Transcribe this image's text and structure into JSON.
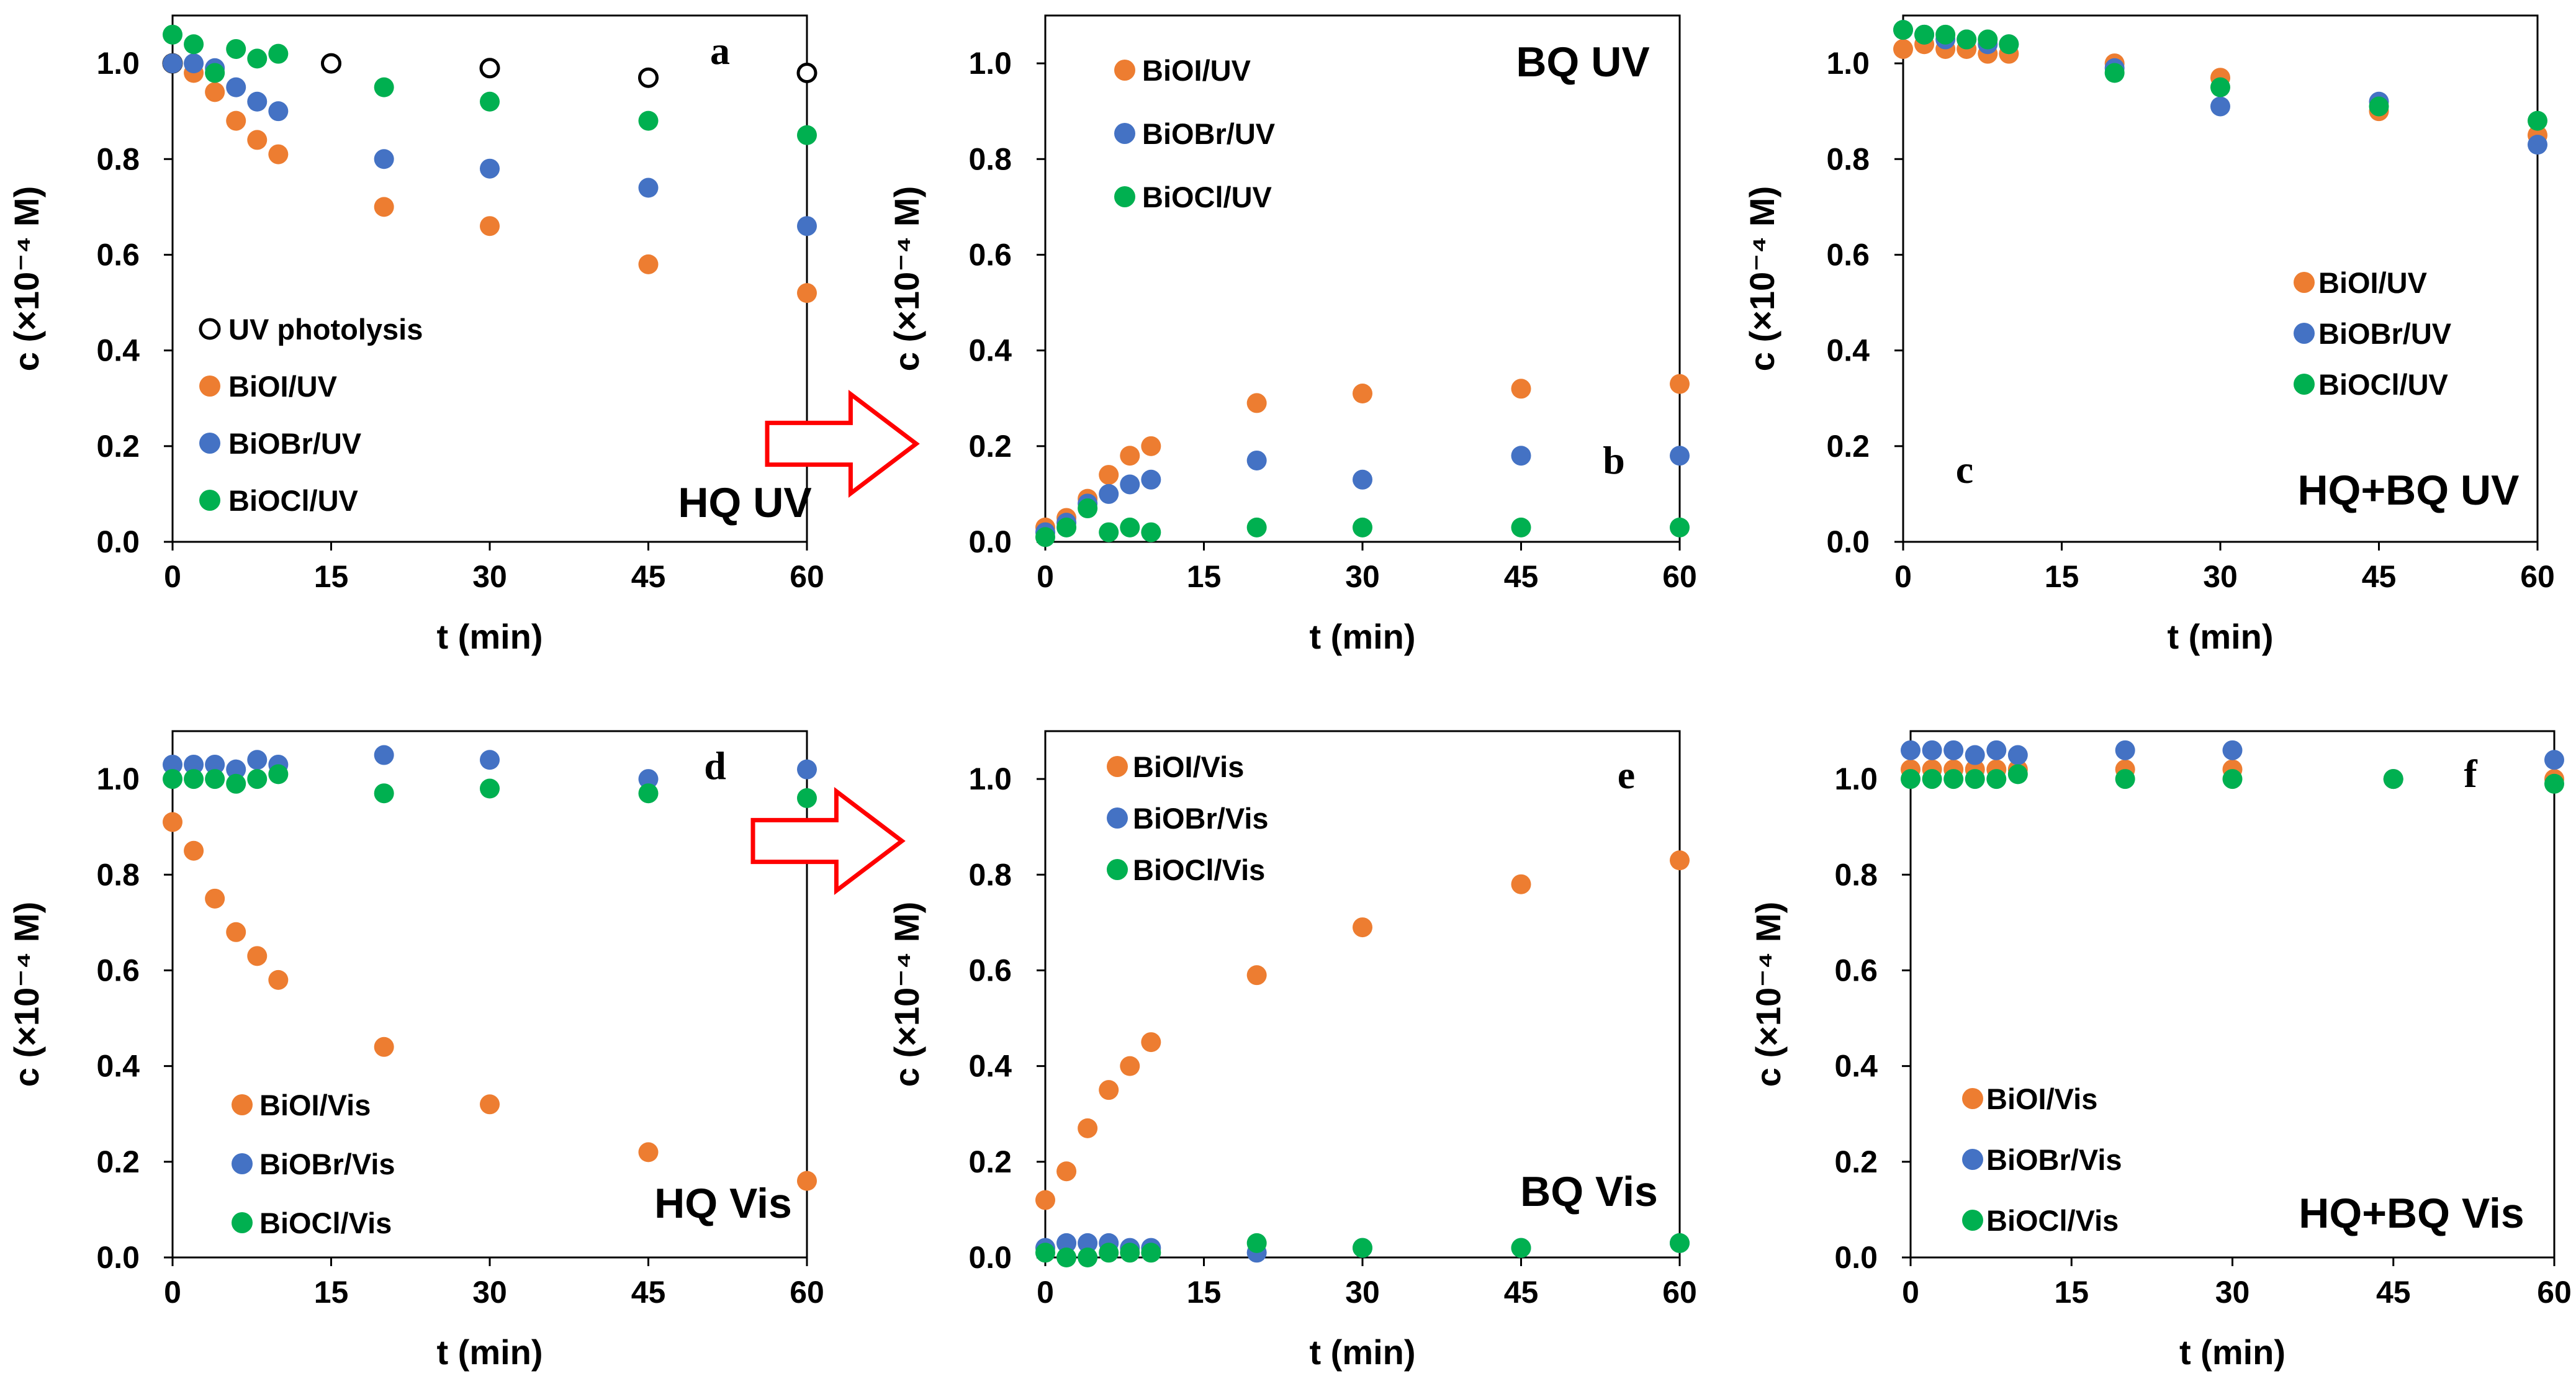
{
  "chart_data": [
    {
      "type": "scatter",
      "panel_letter": "a",
      "title": "HQ UV",
      "xlabel": "t (min)",
      "ylabel": "c (×10⁻⁴ M)",
      "xlim": [
        0,
        60
      ],
      "ylim": [
        0,
        1.1
      ],
      "xticks": [
        0,
        15,
        30,
        45,
        60
      ],
      "xtick_labels": [
        "0",
        "15",
        "30",
        "45",
        "60"
      ],
      "yticks": [
        0,
        0.2,
        0.4,
        0.6,
        0.8,
        1.0
      ],
      "ytick_labels": [
        "0.0",
        "0.2",
        "0.4",
        "0.6",
        "0.8",
        "1.0"
      ],
      "grid": false,
      "legend_position": "bottom-left",
      "series": [
        {
          "name": "UV photolysis",
          "color": "#000000",
          "marker": "open-circle",
          "x": [
            0,
            15,
            30,
            45,
            60
          ],
          "y": [
            1.0,
            1.0,
            0.99,
            0.97,
            0.98
          ]
        },
        {
          "name": "BiOI/UV",
          "color": "#ED7D31",
          "marker": "filled-circle",
          "x": [
            0,
            2,
            4,
            6,
            8,
            10,
            20,
            30,
            45,
            60
          ],
          "y": [
            1.0,
            0.98,
            0.94,
            0.88,
            0.84,
            0.81,
            0.7,
            0.66,
            0.58,
            0.52
          ]
        },
        {
          "name": "BiOBr/UV",
          "color": "#4472C4",
          "marker": "filled-circle",
          "x": [
            0,
            2,
            4,
            6,
            8,
            10,
            20,
            30,
            45,
            60
          ],
          "y": [
            1.0,
            1.0,
            0.99,
            0.95,
            0.92,
            0.9,
            0.8,
            0.78,
            0.74,
            0.66
          ]
        },
        {
          "name": "BiOCl/UV",
          "color": "#00B050",
          "marker": "filled-circle",
          "x": [
            0,
            2,
            4,
            6,
            8,
            10,
            20,
            30,
            45,
            60
          ],
          "y": [
            1.06,
            1.04,
            0.98,
            1.03,
            1.01,
            1.02,
            0.95,
            0.92,
            0.88,
            0.85
          ]
        }
      ]
    },
    {
      "type": "scatter",
      "panel_letter": "b",
      "title": "BQ UV",
      "xlabel": "t (min)",
      "ylabel": "c (×10⁻⁴ M)",
      "xlim": [
        0,
        60
      ],
      "ylim": [
        0,
        1.1
      ],
      "xticks": [
        0,
        15,
        30,
        45,
        60
      ],
      "xtick_labels": [
        "0",
        "15",
        "30",
        "45",
        "60"
      ],
      "yticks": [
        0,
        0.2,
        0.4,
        0.6,
        0.8,
        1.0
      ],
      "ytick_labels": [
        "0.0",
        "0.2",
        "0.4",
        "0.6",
        "0.8",
        "1.0"
      ],
      "grid": false,
      "legend_position": "top-left",
      "series": [
        {
          "name": "BiOI/UV",
          "color": "#ED7D31",
          "marker": "filled-circle",
          "x": [
            0,
            2,
            4,
            6,
            8,
            10,
            20,
            30,
            45,
            60
          ],
          "y": [
            0.03,
            0.05,
            0.09,
            0.14,
            0.18,
            0.2,
            0.29,
            0.31,
            0.32,
            0.33
          ]
        },
        {
          "name": "BiOBr/UV",
          "color": "#4472C4",
          "marker": "filled-circle",
          "x": [
            0,
            2,
            4,
            6,
            8,
            10,
            20,
            30,
            45,
            60
          ],
          "y": [
            0.02,
            0.04,
            0.08,
            0.1,
            0.12,
            0.13,
            0.17,
            0.13,
            0.18,
            0.18
          ]
        },
        {
          "name": "BiOCl/UV",
          "color": "#00B050",
          "marker": "filled-circle",
          "x": [
            0,
            2,
            4,
            6,
            8,
            10,
            20,
            30,
            45,
            60
          ],
          "y": [
            0.01,
            0.03,
            0.07,
            0.02,
            0.03,
            0.02,
            0.03,
            0.03,
            0.03,
            0.03
          ]
        }
      ]
    },
    {
      "type": "scatter",
      "panel_letter": "c",
      "title": "HQ+BQ UV",
      "xlabel": "t (min)",
      "ylabel": "c (×10⁻⁴ M)",
      "xlim": [
        0,
        60
      ],
      "ylim": [
        0,
        1.1
      ],
      "xticks": [
        0,
        15,
        30,
        45,
        60
      ],
      "xtick_labels": [
        "0",
        "15",
        "30",
        "45",
        "60"
      ],
      "yticks": [
        0,
        0.2,
        0.4,
        0.6,
        0.8,
        1.0
      ],
      "ytick_labels": [
        "0.0",
        "0.2",
        "0.4",
        "0.6",
        "0.8",
        "1.0"
      ],
      "grid": false,
      "legend_position": "middle-right",
      "series": [
        {
          "name": "BiOI/UV",
          "color": "#ED7D31",
          "marker": "filled-circle",
          "x": [
            0,
            2,
            4,
            6,
            8,
            10,
            20,
            30,
            45,
            60
          ],
          "y": [
            1.03,
            1.04,
            1.03,
            1.03,
            1.02,
            1.02,
            1.0,
            0.97,
            0.9,
            0.85
          ]
        },
        {
          "name": "BiOBr/UV",
          "color": "#4472C4",
          "marker": "filled-circle",
          "x": [
            0,
            2,
            4,
            6,
            8,
            10,
            20,
            30,
            45,
            60
          ],
          "y": [
            1.07,
            1.06,
            1.05,
            1.05,
            1.04,
            1.04,
            0.99,
            0.91,
            0.92,
            0.83
          ]
        },
        {
          "name": "BiOCl/UV",
          "color": "#00B050",
          "marker": "filled-circle",
          "x": [
            0,
            2,
            4,
            6,
            8,
            10,
            20,
            30,
            45,
            60
          ],
          "y": [
            1.07,
            1.06,
            1.06,
            1.05,
            1.05,
            1.04,
            0.98,
            0.95,
            0.91,
            0.88
          ]
        }
      ]
    },
    {
      "type": "scatter",
      "panel_letter": "d",
      "title": "HQ Vis",
      "xlabel": "t (min)",
      "ylabel": "c (×10⁻⁴ M)",
      "xlim": [
        0,
        60
      ],
      "ylim": [
        0,
        1.1
      ],
      "xticks": [
        0,
        15,
        30,
        45,
        60
      ],
      "xtick_labels": [
        "0",
        "15",
        "30",
        "45",
        "60"
      ],
      "yticks": [
        0,
        0.2,
        0.4,
        0.6,
        0.8,
        1.0
      ],
      "ytick_labels": [
        "0.0",
        "0.2",
        "0.4",
        "0.6",
        "0.8",
        "1.0"
      ],
      "grid": false,
      "legend_position": "bottom-left",
      "series": [
        {
          "name": "BiOI/Vis",
          "color": "#ED7D31",
          "marker": "filled-circle",
          "x": [
            0,
            2,
            4,
            6,
            8,
            10,
            20,
            30,
            45,
            60
          ],
          "y": [
            0.91,
            0.85,
            0.75,
            0.68,
            0.63,
            0.58,
            0.44,
            0.32,
            0.22,
            0.16
          ]
        },
        {
          "name": "BiOBr/Vis",
          "color": "#4472C4",
          "marker": "filled-circle",
          "x": [
            0,
            2,
            4,
            6,
            8,
            10,
            20,
            30,
            45,
            60
          ],
          "y": [
            1.03,
            1.03,
            1.03,
            1.02,
            1.04,
            1.03,
            1.05,
            1.04,
            1.0,
            1.02
          ]
        },
        {
          "name": "BiOCl/Vis",
          "color": "#00B050",
          "marker": "filled-circle",
          "x": [
            0,
            2,
            4,
            6,
            8,
            10,
            20,
            30,
            45,
            60
          ],
          "y": [
            1.0,
            1.0,
            1.0,
            0.99,
            1.0,
            1.01,
            0.97,
            0.98,
            0.97,
            0.96
          ]
        }
      ]
    },
    {
      "type": "scatter",
      "panel_letter": "e",
      "title": "BQ Vis",
      "xlabel": "t (min)",
      "ylabel": "c (×10⁻⁴ M)",
      "xlim": [
        0,
        60
      ],
      "ylim": [
        0,
        1.1
      ],
      "xticks": [
        0,
        15,
        30,
        45,
        60
      ],
      "xtick_labels": [
        "0",
        "15",
        "30",
        "45",
        "60"
      ],
      "yticks": [
        0,
        0.2,
        0.4,
        0.6,
        0.8,
        1.0
      ],
      "ytick_labels": [
        "0.0",
        "0.2",
        "0.4",
        "0.6",
        "0.8",
        "1.0"
      ],
      "grid": false,
      "legend_position": "top-left",
      "series": [
        {
          "name": "BiOI/Vis",
          "color": "#ED7D31",
          "marker": "filled-circle",
          "x": [
            0,
            2,
            4,
            6,
            8,
            10,
            20,
            30,
            45,
            60
          ],
          "y": [
            0.12,
            0.18,
            0.27,
            0.35,
            0.4,
            0.45,
            0.59,
            0.69,
            0.78,
            0.83
          ]
        },
        {
          "name": "BiOBr/Vis",
          "color": "#4472C4",
          "marker": "filled-circle",
          "x": [
            0,
            2,
            4,
            6,
            8,
            10,
            20,
            30,
            45,
            60
          ],
          "y": [
            0.02,
            0.03,
            0.03,
            0.03,
            0.02,
            0.02,
            0.01,
            0.02,
            0.02,
            0.03
          ]
        },
        {
          "name": "BiOCl/Vis",
          "color": "#00B050",
          "marker": "filled-circle",
          "x": [
            0,
            2,
            4,
            6,
            8,
            10,
            20,
            30,
            45,
            60
          ],
          "y": [
            0.01,
            0.0,
            0.0,
            0.01,
            0.01,
            0.01,
            0.03,
            0.02,
            0.02,
            0.03
          ]
        }
      ]
    },
    {
      "type": "scatter",
      "panel_letter": "f",
      "title": "HQ+BQ Vis",
      "xlabel": "t (min)",
      "ylabel": "c (×10⁻⁴ M)",
      "xlim": [
        0,
        60
      ],
      "ylim": [
        0,
        1.1
      ],
      "xticks": [
        0,
        15,
        30,
        45,
        60
      ],
      "xtick_labels": [
        "0",
        "15",
        "30",
        "45",
        "60"
      ],
      "yticks": [
        0,
        0.2,
        0.4,
        0.6,
        0.8,
        1.0
      ],
      "ytick_labels": [
        "0.0",
        "0.2",
        "0.4",
        "0.6",
        "0.8",
        "1.0"
      ],
      "grid": false,
      "legend_position": "bottom-left",
      "series": [
        {
          "name": "BiOI/Vis",
          "color": "#ED7D31",
          "marker": "filled-circle",
          "x": [
            0,
            2,
            4,
            6,
            8,
            10,
            20,
            30,
            45,
            60
          ],
          "y": [
            1.02,
            1.02,
            1.02,
            1.02,
            1.02,
            1.02,
            1.02,
            1.02,
            1.0,
            1.0
          ]
        },
        {
          "name": "BiOBr/Vis",
          "color": "#4472C4",
          "marker": "filled-circle",
          "x": [
            0,
            2,
            4,
            6,
            8,
            10,
            20,
            30,
            45,
            60
          ],
          "y": [
            1.06,
            1.06,
            1.06,
            1.05,
            1.06,
            1.05,
            1.06,
            1.06,
            1.0,
            1.04
          ]
        },
        {
          "name": "BiOCl/Vis",
          "color": "#00B050",
          "marker": "filled-circle",
          "x": [
            0,
            2,
            4,
            6,
            8,
            10,
            20,
            30,
            45,
            60
          ],
          "y": [
            1.0,
            1.0,
            1.0,
            1.0,
            1.0,
            1.01,
            1.0,
            1.0,
            1.0,
            0.99
          ]
        }
      ]
    }
  ],
  "colors": {
    "arrow": "#FF0000",
    "axis": "#000000",
    "background": "#FFFFFF"
  }
}
